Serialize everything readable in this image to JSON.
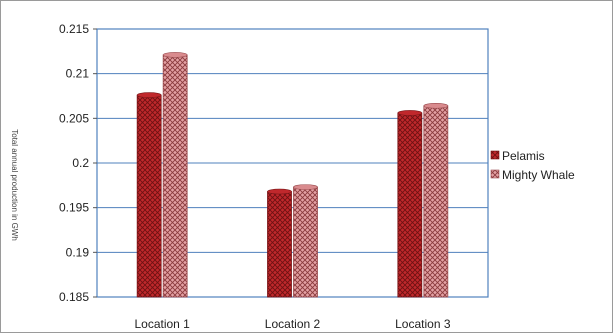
{
  "chart_data": {
    "type": "bar",
    "title": "",
    "xlabel": "",
    "ylabel": "Total annual production in GWh",
    "categories": [
      "Location 1",
      "Location 2",
      "Location 3"
    ],
    "series": [
      {
        "name": "Pelamis",
        "values": [
          0.2076,
          0.1968,
          0.2056
        ],
        "color": "#c0282c"
      },
      {
        "name": "Mighty Whale",
        "values": [
          0.2121,
          0.1973,
          0.2064
        ],
        "color": "#d98b8e"
      }
    ],
    "ylim": [
      0.185,
      0.215
    ],
    "yticks": [
      "0.185",
      "0.19",
      "0.195",
      "0.2",
      "0.205",
      "0.21",
      "0.215"
    ],
    "gridlines": true,
    "legend_position": "right"
  }
}
